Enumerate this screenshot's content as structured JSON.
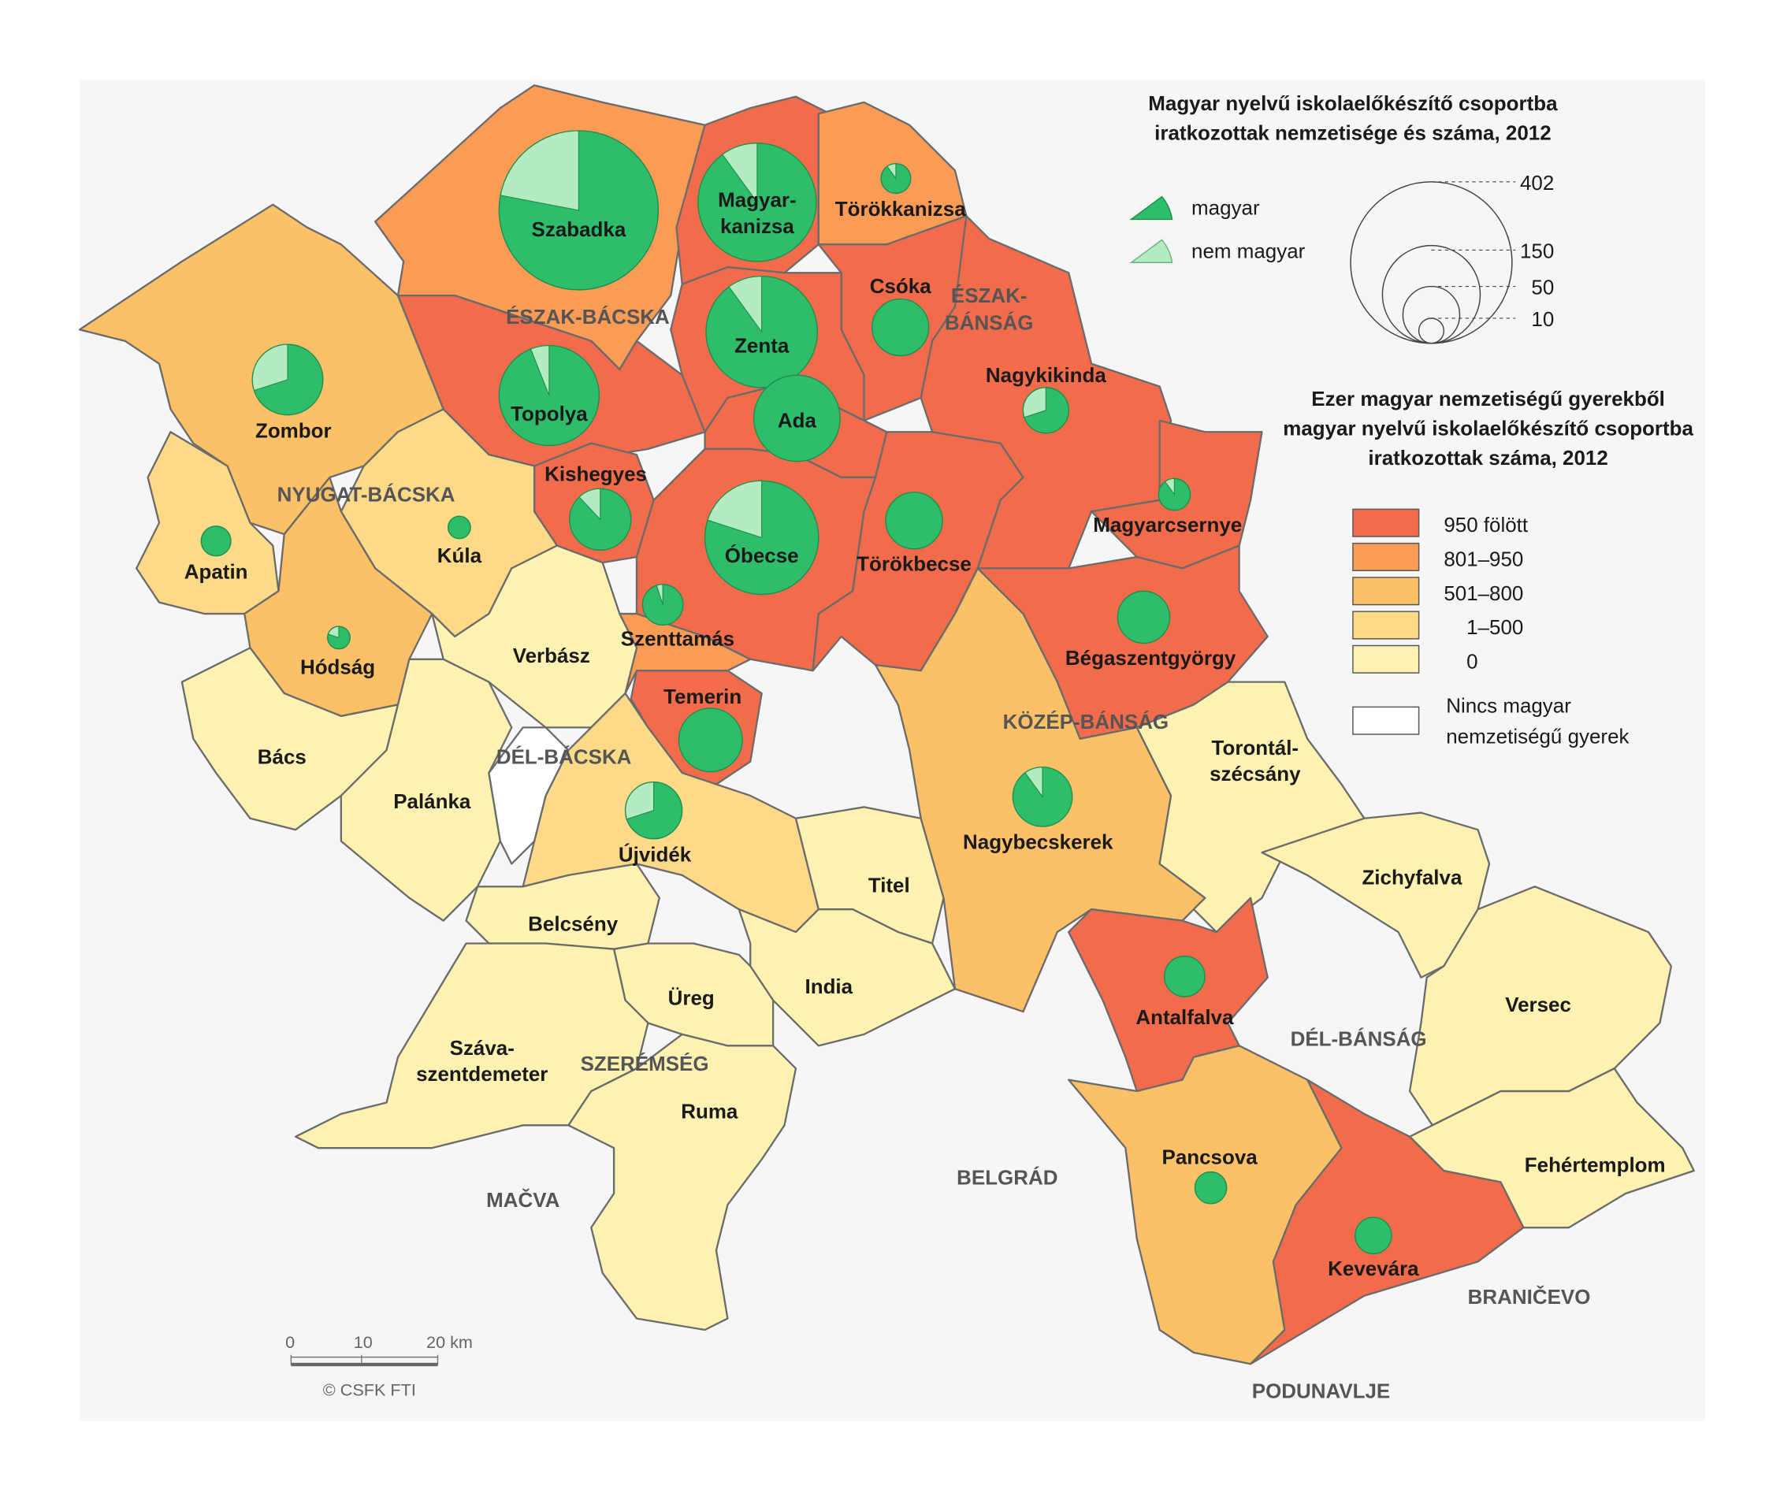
{
  "legend_pies": {
    "title_line1": "Magyar nyelvű iskolaelőkészítő csoportba",
    "title_line2": "iratkozottak nemzetisége és száma, 2012",
    "magyar_label": "magyar",
    "nem_magyar_label": "nem magyar",
    "size_values": [
      "402",
      "150",
      "50",
      "10"
    ],
    "colors": {
      "magyar": "#2ebd6b",
      "nem_magyar": "#b5ebc0"
    }
  },
  "legend_choropleth": {
    "title_line1": "Ezer magyar nemzetiségű gyerekből",
    "title_line2": "magyar nyelvű iskolaelőkészítő csoportba",
    "title_line3": "iratkozottak száma, 2012",
    "classes": [
      {
        "key": "c950",
        "label": "950 fölött",
        "color": "#f26c4b"
      },
      {
        "key": "c801",
        "label": "801–950",
        "color": "#fa9b56"
      },
      {
        "key": "c501",
        "label": "501–800",
        "color": "#fcc066"
      },
      {
        "key": "c1",
        "label": "1–500",
        "color": "#fdda88"
      },
      {
        "key": "c0",
        "label": "0",
        "color": "#fef2b2"
      }
    ],
    "none_label_line1": "Nincs magyar",
    "none_label_line2": "nemzetiségű gyerek",
    "none_color": "#ffffff"
  },
  "regions": [
    "ÉSZAK-BÁCSKA",
    "ÉSZAK-",
    "BÁNSÁG",
    "NYUGAT-BÁCSKA",
    "DÉL-BÁCSKA",
    "KÖZÉP-BÁNSÁG",
    "SZERÉMSÉG",
    "DÉL-BÁNSÁG",
    "MAČVA",
    "BELGRÁD",
    "BRANIČEVO",
    "PODUNAVLJE"
  ],
  "municipalities": [
    {
      "name": "Szabadka",
      "class": "c801",
      "pie": {
        "count": 402,
        "magyar_share": 0.78
      }
    },
    {
      "name": "Magyar-|kanizsa",
      "class": "c950",
      "pie": {
        "count": 222,
        "magyar_share": 0.9
      }
    },
    {
      "name": "Törökkanizsa",
      "class": "c801",
      "pie": {
        "count": 14,
        "magyar_share": 0.9
      }
    },
    {
      "name": "Csóka",
      "class": "c950",
      "pie": {
        "count": 51,
        "magyar_share": 1.0
      }
    },
    {
      "name": "Zenta",
      "class": "c950",
      "pie": {
        "count": 197,
        "magyar_share": 0.9
      }
    },
    {
      "name": "Topolya",
      "class": "c950",
      "pie": {
        "count": 159,
        "magyar_share": 0.94
      }
    },
    {
      "name": "Ada",
      "class": "c950",
      "pie": {
        "count": 118,
        "magyar_share": 1.0
      }
    },
    {
      "name": "Zombor",
      "class": "c501",
      "pie": {
        "count": 79,
        "magyar_share": 0.7
      }
    },
    {
      "name": "Kishegyes",
      "class": "c950",
      "pie": {
        "count": 60,
        "magyar_share": 0.88
      }
    },
    {
      "name": "Óbecse",
      "class": "c950",
      "pie": {
        "count": 205,
        "magyar_share": 0.8
      }
    },
    {
      "name": "Törökbecse",
      "class": "c950",
      "pie": {
        "count": 51,
        "magyar_share": 1.0
      }
    },
    {
      "name": "Nagykikinda",
      "class": "c950",
      "pie": {
        "count": 33,
        "magyar_share": 0.7
      }
    },
    {
      "name": "Magyarcsernye",
      "class": "c950",
      "pie": {
        "count": 16,
        "magyar_share": 0.9
      }
    },
    {
      "name": "Bégaszentgyörgy",
      "class": "c950",
      "pie": {
        "count": 43,
        "magyar_share": 1.0
      }
    },
    {
      "name": "Szenttamás",
      "class": "c801",
      "pie": {
        "count": 26,
        "magyar_share": 0.95
      }
    },
    {
      "name": "Apatin",
      "class": "c1",
      "pie": {
        "count": 14,
        "magyar_share": 1.0
      }
    },
    {
      "name": "Kúla",
      "class": "c1",
      "pie": {
        "count": 8,
        "magyar_share": 1.0
      }
    },
    {
      "name": "Hódság",
      "class": "c501",
      "pie": {
        "count": 8,
        "magyar_share": 0.8
      }
    },
    {
      "name": "Verbász",
      "class": "c0",
      "pie": null
    },
    {
      "name": "Temerin",
      "class": "c950",
      "pie": {
        "count": 64,
        "magyar_share": 1.0
      }
    },
    {
      "name": "Bács",
      "class": "c0",
      "pie": null
    },
    {
      "name": "Palánka",
      "class": "c0",
      "pie": null
    },
    {
      "name": "Újvidék",
      "class": "c1",
      "pie": {
        "count": 51,
        "magyar_share": 0.7
      }
    },
    {
      "name": "Titel",
      "class": "c0",
      "pie": null
    },
    {
      "name": "Nagybecskerek",
      "class": "c501",
      "pie": {
        "count": 56,
        "magyar_share": 0.9
      }
    },
    {
      "name": "Torontál-|szécsány",
      "class": "c0",
      "pie": null
    },
    {
      "name": "Zichyfalva",
      "class": "c0",
      "pie": null
    },
    {
      "name": "Versec",
      "class": "c0",
      "pie": null
    },
    {
      "name": "Fehértemplom",
      "class": "c0",
      "pie": null
    },
    {
      "name": "Antalfalva",
      "class": "c950",
      "pie": {
        "count": 26,
        "magyar_share": 1.0
      }
    },
    {
      "name": "Pancsova",
      "class": "c501",
      "pie": {
        "count": 16,
        "magyar_share": 1.0
      }
    },
    {
      "name": "Kevevára",
      "class": "c950",
      "pie": {
        "count": 21,
        "magyar_share": 1.0
      }
    },
    {
      "name": "Belcsény",
      "class": "c0",
      "pie": null
    },
    {
      "name": "India",
      "class": "c0",
      "pie": null
    },
    {
      "name": "Üreg",
      "class": "c0",
      "pie": null
    },
    {
      "name": "Száva-|szentdemeter",
      "class": "c0",
      "pie": null
    },
    {
      "name": "Ruma",
      "class": "c0",
      "pie": null
    }
  ],
  "scale_bar": {
    "ticks": [
      "0",
      "10",
      "20 km"
    ],
    "credit": "© CSFK FTI"
  }
}
